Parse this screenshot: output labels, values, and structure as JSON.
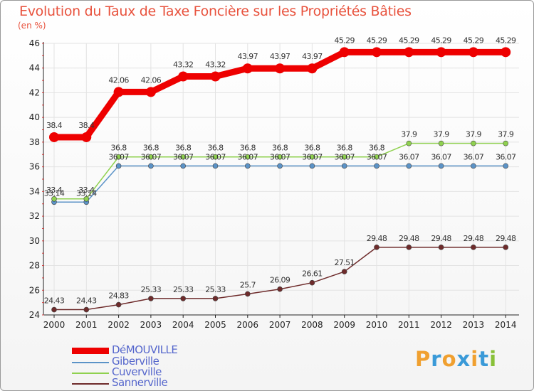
{
  "title": "Evolution du Taux de Taxe Foncière sur les Propriétés Bâties",
  "unit": "(en %)",
  "brand": {
    "text": "Proxiti",
    "letters": [
      {
        "ch": "P",
        "color": "#f0a030"
      },
      {
        "ch": "r",
        "color": "#3a9ad8"
      },
      {
        "ch": "o",
        "color": "#f0a030"
      },
      {
        "ch": "x",
        "color": "#3a9ad8"
      },
      {
        "ch": "i",
        "color": "#f0a030"
      },
      {
        "ch": "t",
        "color": "#3a9ad8"
      },
      {
        "ch": "i",
        "color": "#88c038"
      }
    ]
  },
  "chart_data": {
    "type": "line",
    "title": "Evolution du Taux de Taxe Foncière sur les Propriétés Bâties",
    "ylabel": "(en %)",
    "xlabel": "",
    "categories": [
      "2000",
      "2001",
      "2002",
      "2003",
      "2004",
      "2005",
      "2006",
      "2007",
      "2008",
      "2009",
      "2010",
      "2011",
      "2012",
      "2013",
      "2014"
    ],
    "ylim": [
      24,
      46
    ],
    "yticks": [
      24,
      26,
      28,
      30,
      32,
      34,
      36,
      38,
      40,
      42,
      44,
      46
    ],
    "grid": true,
    "series": [
      {
        "name": "DéMOUVILLE",
        "color": "#ee0000",
        "width": 9,
        "markerRadius": 7,
        "values": [
          38.4,
          38.4,
          42.06,
          42.06,
          43.32,
          43.32,
          43.97,
          43.97,
          43.97,
          45.29,
          45.29,
          45.29,
          45.29,
          45.29,
          45.29
        ],
        "labels": [
          "38.4",
          "38.4",
          "42.06",
          "42.06",
          "43.32",
          "43.32",
          "43.97",
          "43.97",
          "43.97",
          "45.29",
          "45.29",
          "45.29",
          "45.29",
          "45.29",
          "45.29"
        ]
      },
      {
        "name": "Giberville",
        "color": "#5b93c7",
        "width": 1.5,
        "markerRadius": 3.5,
        "values": [
          33.14,
          33.14,
          36.07,
          36.07,
          36.07,
          36.07,
          36.07,
          36.07,
          36.07,
          36.07,
          36.07,
          36.07,
          36.07,
          36.07,
          36.07
        ],
        "labels": [
          "33.14",
          "33.14",
          "36.07",
          "36.07",
          "36.07",
          "36.07",
          "36.07",
          "36.07",
          "36.07",
          "36.07",
          "36.07",
          "36.07",
          "36.07",
          "36.07",
          "36.07"
        ]
      },
      {
        "name": "Cuverville",
        "color": "#8fd14f",
        "width": 1.5,
        "markerRadius": 3.5,
        "values": [
          33.4,
          33.4,
          36.8,
          36.8,
          36.8,
          36.8,
          36.8,
          36.8,
          36.8,
          36.8,
          36.8,
          37.9,
          37.9,
          37.9,
          37.9
        ],
        "labels": [
          "33.4",
          "33.4",
          "36.8",
          "36.8",
          "36.8",
          "36.8",
          "36.8",
          "36.8",
          "36.8",
          "36.8",
          "36.8",
          "37.9",
          "37.9",
          "37.9",
          "37.9"
        ]
      },
      {
        "name": "Sannerville",
        "color": "#6e2b2b",
        "width": 1.5,
        "markerRadius": 3.5,
        "values": [
          24.43,
          24.43,
          24.83,
          25.33,
          25.33,
          25.33,
          25.7,
          26.09,
          26.61,
          27.51,
          29.48,
          29.48,
          29.48,
          29.48,
          29.48
        ],
        "labels": [
          "24.43",
          "24.43",
          "24.83",
          "25.33",
          "25.33",
          "25.33",
          "25.7",
          "26.09",
          "26.61",
          "27.51",
          "29.48",
          "29.48",
          "29.48",
          "29.48",
          "29.48"
        ]
      }
    ]
  }
}
